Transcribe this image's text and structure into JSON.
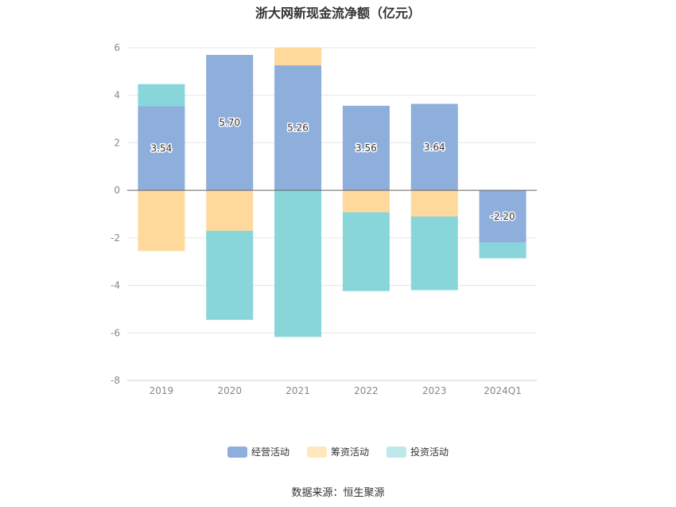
{
  "colors": {
    "operating": "#8eaedb",
    "financing": "#ffd99b",
    "investing": "#88d6da"
  },
  "legend": {
    "operating": "经营活动",
    "financing": "筹资活动",
    "investing": "投资活动"
  },
  "source": "数据来源：恒生聚源",
  "chart_data": {
    "type": "bar",
    "stacked": true,
    "title": "浙大网新现金流净额（亿元）",
    "categories": [
      "2019",
      "2020",
      "2021",
      "2022",
      "2023",
      "2024Q1"
    ],
    "ylim": [
      -8,
      6
    ],
    "yticks": [
      -8,
      -6,
      -4,
      -2,
      0,
      2,
      4,
      6
    ],
    "grid": true,
    "legend_position": "bottom",
    "series": [
      {
        "name": "经营活动",
        "key": "operating",
        "values": [
          3.54,
          5.7,
          5.26,
          3.56,
          3.64,
          -2.2
        ],
        "labels": [
          "3.54",
          "5.70",
          "5.26",
          "3.56",
          "3.64",
          "-2.20"
        ]
      },
      {
        "name": "筹资活动",
        "key": "financing",
        "values": [
          -2.55,
          -1.7,
          0.75,
          -0.92,
          -1.1,
          0.0
        ]
      },
      {
        "name": "投资活动",
        "key": "investing",
        "values": [
          0.93,
          -3.75,
          -6.17,
          -3.32,
          -3.1,
          -0.66
        ]
      }
    ]
  }
}
